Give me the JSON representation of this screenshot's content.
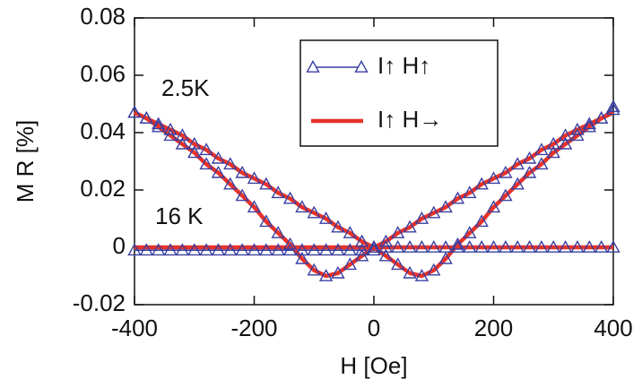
{
  "chart_data": {
    "type": "line",
    "xlabel": "H [Oe]",
    "ylabel": "M R [%]",
    "annotations": [
      "2.5K",
      "16 K"
    ],
    "legend": "upper center",
    "xlim": [
      -400,
      400
    ],
    "ylim": [
      -0.02,
      0.08
    ],
    "xticks": [
      -400,
      -200,
      0,
      200,
      400
    ],
    "yticks": [
      -0.02,
      0,
      0.02,
      0.04,
      0.06,
      0.08
    ],
    "x": [
      -400,
      -380,
      -360,
      -340,
      -320,
      -300,
      -280,
      -260,
      -240,
      -220,
      -200,
      -180,
      -160,
      -140,
      -120,
      -100,
      -80,
      -60,
      -40,
      -20,
      0,
      20,
      40,
      60,
      80,
      100,
      120,
      140,
      160,
      180,
      200,
      220,
      240,
      260,
      280,
      300,
      320,
      340,
      360,
      380,
      400
    ],
    "series": [
      {
        "name": "I↑ H↑",
        "color": "#3a3fa0",
        "marker": "triangle",
        "values": [
          [
            0.047,
            0.045,
            0.042,
            0.039,
            0.036,
            0.033,
            0.029,
            0.026,
            0.022,
            0.018,
            0.014,
            0.009,
            0.005,
            0.001,
            -0.004,
            -0.008,
            -0.01,
            -0.009,
            -0.006,
            -0.003,
            0.0,
            0.002,
            0.005,
            0.007,
            0.01,
            0.012,
            0.014,
            0.017,
            0.019,
            0.022,
            0.024,
            0.026,
            0.029,
            0.031,
            0.034,
            0.036,
            0.039,
            0.041,
            0.043,
            0.045,
            0.048
          ],
          [
            0.047,
            0.045,
            0.043,
            0.041,
            0.039,
            0.036,
            0.034,
            0.031,
            0.029,
            0.026,
            0.024,
            0.022,
            0.019,
            0.017,
            0.014,
            0.012,
            0.01,
            0.007,
            0.005,
            0.002,
            0.0,
            -0.003,
            -0.006,
            -0.009,
            -0.01,
            -0.008,
            -0.004,
            0.001,
            0.005,
            0.009,
            0.014,
            0.018,
            0.022,
            0.026,
            0.029,
            0.033,
            0.036,
            0.039,
            0.042,
            0.045,
            0.049
          ],
          [
            -0.001,
            -0.001,
            -0.001,
            -0.001,
            -0.001,
            -0.001,
            -0.001,
            -0.001,
            -0.001,
            -0.001,
            -0.001,
            -0.001,
            -0.001,
            -0.001,
            -0.001,
            -0.001,
            -0.001,
            -0.001,
            -0.001,
            -0.001,
            -0.001,
            0,
            0,
            0,
            0,
            0,
            0,
            0,
            0,
            0,
            0,
            0,
            0,
            0,
            0,
            0,
            0,
            0,
            0,
            0,
            0
          ]
        ]
      },
      {
        "name": "I↑ H→",
        "color": "#e8322a",
        "marker": "none",
        "values": [
          [
            0.047,
            0.045,
            0.042,
            0.039,
            0.036,
            0.033,
            0.029,
            0.026,
            0.022,
            0.018,
            0.014,
            0.009,
            0.005,
            0.001,
            -0.004,
            -0.008,
            -0.01,
            -0.009,
            -0.006,
            -0.003,
            0.0,
            0.002,
            0.005,
            0.007,
            0.01,
            0.012,
            0.014,
            0.017,
            0.019,
            0.022,
            0.024,
            0.026,
            0.029,
            0.031,
            0.034,
            0.036,
            0.039,
            0.041,
            0.043,
            0.045,
            0.047
          ],
          [
            0.047,
            0.045,
            0.043,
            0.041,
            0.039,
            0.036,
            0.034,
            0.031,
            0.029,
            0.026,
            0.024,
            0.022,
            0.019,
            0.017,
            0.014,
            0.012,
            0.01,
            0.007,
            0.005,
            0.002,
            0.0,
            -0.003,
            -0.006,
            -0.009,
            -0.01,
            -0.008,
            -0.004,
            0.001,
            0.005,
            0.009,
            0.014,
            0.018,
            0.022,
            0.026,
            0.029,
            0.033,
            0.036,
            0.039,
            0.042,
            0.045,
            0.047
          ],
          [
            0,
            0,
            0,
            0,
            0,
            0,
            0,
            0,
            0,
            0,
            0,
            0,
            0,
            0,
            0,
            0,
            0,
            0,
            0,
            0,
            0,
            0,
            0,
            0,
            0,
            0,
            0,
            0,
            0,
            0,
            0,
            0,
            0,
            0,
            0,
            0,
            0,
            0,
            0,
            0,
            0
          ]
        ]
      }
    ]
  }
}
